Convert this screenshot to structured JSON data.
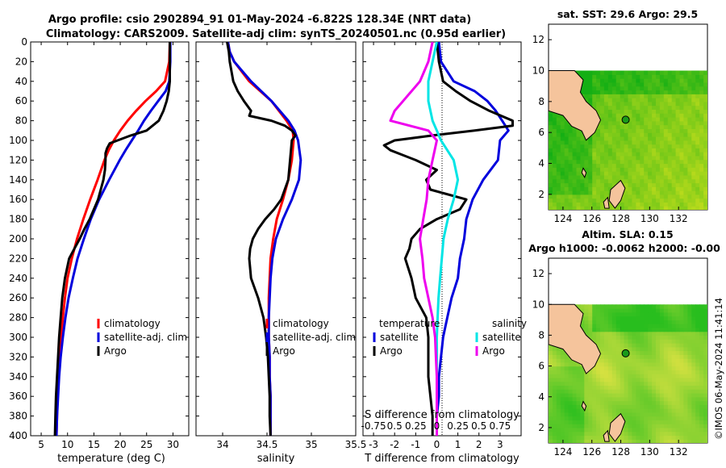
{
  "header": {
    "title_line1": "Argo profile: csio 2902894_91 01-May-2024 -6.822S 128.34E (NRT data)",
    "title_line2": "Climatology: CARS2009. Satellite-adj clim: synTS_20240501.nc (0.95d earlier)"
  },
  "colors": {
    "climatology": "#ff0000",
    "satellite": "#0000dd",
    "argo": "#000000",
    "sat_salinity": "#00e5e5",
    "argo_salinity": "#ee00ee",
    "land": "#f5c49c"
  },
  "chart_data": [
    {
      "type": "line",
      "id": "temperature",
      "xlabel": "temperature (deg C)",
      "ylabel": "",
      "xlim": [
        3,
        33
      ],
      "ylim": [
        0,
        400
      ],
      "y_reversed": true,
      "xticks": [
        5,
        10,
        15,
        20,
        25,
        30
      ],
      "yticks": [
        0,
        20,
        40,
        60,
        80,
        100,
        120,
        140,
        160,
        180,
        200,
        220,
        240,
        260,
        280,
        300,
        320,
        340,
        360,
        380,
        400
      ],
      "legend": [
        "climatology",
        "satellite-adj. clim",
        "Argo"
      ],
      "series": [
        {
          "name": "climatology",
          "color": "#ff0000",
          "depth": [
            0,
            20,
            40,
            50,
            60,
            70,
            80,
            90,
            100,
            110,
            120,
            140,
            160,
            180,
            200,
            220,
            240,
            260,
            280,
            300,
            320,
            340,
            360,
            380,
            400
          ],
          "values": [
            29.4,
            29.3,
            28.5,
            26.8,
            24.8,
            23.0,
            21.4,
            20.0,
            18.8,
            17.8,
            17.0,
            15.7,
            14.3,
            13.0,
            11.8,
            10.8,
            10.0,
            9.5,
            9.1,
            8.8,
            8.5,
            8.3,
            8.1,
            8.0,
            7.9
          ]
        },
        {
          "name": "satellite-adj. clim",
          "color": "#0000dd",
          "depth": [
            0,
            20,
            40,
            50,
            60,
            70,
            80,
            90,
            100,
            110,
            120,
            140,
            160,
            180,
            200,
            220,
            240,
            260,
            280,
            300,
            320,
            340,
            360,
            380,
            400
          ],
          "values": [
            29.5,
            29.5,
            29.3,
            28.6,
            27.2,
            25.8,
            24.5,
            23.4,
            22.2,
            21.0,
            19.9,
            17.9,
            16.0,
            14.4,
            13.1,
            11.9,
            11.0,
            10.2,
            9.6,
            9.1,
            8.7,
            8.4,
            8.2,
            8.0,
            7.9
          ]
        },
        {
          "name": "Argo",
          "color": "#000000",
          "depth": [
            0,
            20,
            40,
            50,
            60,
            70,
            80,
            90,
            95,
            100,
            103,
            108,
            113,
            120,
            130,
            140,
            150,
            160,
            170,
            180,
            190,
            200,
            210,
            220,
            240,
            260,
            280,
            300,
            320,
            340,
            360,
            380,
            400
          ],
          "values": [
            29.4,
            29.4,
            29.4,
            29.2,
            28.8,
            28.2,
            27.3,
            25.0,
            22.0,
            19.5,
            18.0,
            17.5,
            17.2,
            17.2,
            17.1,
            16.8,
            16.3,
            15.8,
            15.0,
            14.2,
            13.2,
            12.3,
            11.3,
            10.3,
            9.5,
            9.0,
            8.7,
            8.4,
            8.2,
            8.0,
            7.8,
            7.7,
            7.6
          ]
        }
      ]
    },
    {
      "type": "line",
      "id": "salinity",
      "xlabel": "salinity",
      "xlim": [
        33.7,
        35.5
      ],
      "ylim": [
        0,
        400
      ],
      "y_reversed": true,
      "xticks": [
        34,
        34.5,
        35,
        35.5
      ],
      "xtick_labels": [
        "34",
        "34.5",
        "35",
        "35.5"
      ],
      "legend": [
        "climatology",
        "satellite-adj. clim",
        "Argo"
      ],
      "series": [
        {
          "name": "climatology",
          "color": "#ff0000",
          "depth": [
            0,
            10,
            20,
            40,
            60,
            80,
            90,
            100,
            120,
            140,
            160,
            180,
            200,
            220,
            240,
            260,
            280,
            300,
            320,
            340,
            360,
            380,
            400
          ],
          "values": [
            34.06,
            34.08,
            34.13,
            34.3,
            34.55,
            34.72,
            34.79,
            34.8,
            34.78,
            34.74,
            34.68,
            34.61,
            34.57,
            34.54,
            34.53,
            34.52,
            34.52,
            34.52,
            34.53,
            34.53,
            34.54,
            34.54,
            34.54
          ]
        },
        {
          "name": "satellite-adj. clim",
          "color": "#0000dd",
          "depth": [
            0,
            10,
            20,
            40,
            60,
            80,
            90,
            100,
            120,
            140,
            160,
            180,
            200,
            220,
            240,
            260,
            280,
            300,
            320,
            340,
            360,
            380,
            400
          ],
          "values": [
            34.06,
            34.08,
            34.13,
            34.32,
            34.55,
            34.74,
            34.81,
            34.85,
            34.88,
            34.86,
            34.78,
            34.68,
            34.6,
            34.56,
            34.54,
            34.53,
            34.52,
            34.52,
            34.53,
            34.53,
            34.54,
            34.54,
            34.54
          ]
        },
        {
          "name": "Argo",
          "color": "#000000",
          "depth": [
            0,
            5,
            10,
            20,
            30,
            40,
            50,
            60,
            70,
            75,
            80,
            85,
            90,
            95,
            100,
            120,
            140,
            160,
            170,
            180,
            190,
            200,
            210,
            220,
            240,
            260,
            280,
            300,
            320,
            340,
            360,
            380,
            400
          ],
          "values": [
            34.05,
            34.06,
            34.07,
            34.08,
            34.1,
            34.12,
            34.17,
            34.24,
            34.32,
            34.3,
            34.55,
            34.7,
            34.78,
            34.82,
            34.78,
            34.76,
            34.74,
            34.66,
            34.58,
            34.48,
            34.4,
            34.34,
            34.31,
            34.3,
            34.32,
            34.4,
            34.46,
            34.49,
            34.51,
            34.52,
            34.53,
            34.53,
            34.54
          ]
        }
      ]
    },
    {
      "type": "line",
      "id": "difference",
      "xlabel": "T difference from climatology",
      "xlim": [
        -3.5,
        4
      ],
      "ylim": [
        0,
        400
      ],
      "y_reversed": true,
      "xticks": [
        -3,
        -2,
        -1,
        0,
        1,
        2,
        3
      ],
      "xtick_labels": [
        "-3",
        "-2",
        "-1",
        "0",
        "1",
        "2",
        "3"
      ],
      "secondary_xlabel": "S difference from climatology",
      "secondary_xtick_labels": [
        "-0.75",
        "0.5",
        "0.25",
        "0",
        "0.25",
        "0.5",
        "0.75"
      ],
      "legend_left_title": "temperature",
      "legend_right_title": "salinity",
      "legend_left": [
        "satellite",
        "Argo"
      ],
      "legend_right": [
        "satellite",
        "Argo"
      ],
      "series": [
        {
          "name": "temperature satellite",
          "color": "#0000dd",
          "depth": [
            0,
            20,
            40,
            50,
            60,
            70,
            80,
            90,
            100,
            120,
            140,
            160,
            180,
            200,
            220,
            240,
            260,
            280,
            300,
            320,
            340,
            360,
            380,
            400
          ],
          "values": [
            0.1,
            0.2,
            0.8,
            1.8,
            2.4,
            2.8,
            3.1,
            3.4,
            3.0,
            2.9,
            2.2,
            1.7,
            1.4,
            1.3,
            1.1,
            1.0,
            0.7,
            0.5,
            0.3,
            0.2,
            0.1,
            0.1,
            0.0,
            0.0
          ]
        },
        {
          "name": "temperature Argo",
          "color": "#000000",
          "depth": [
            0,
            20,
            40,
            50,
            60,
            70,
            80,
            85,
            90,
            95,
            100,
            105,
            110,
            120,
            130,
            140,
            150,
            160,
            170,
            180,
            190,
            200,
            210,
            220,
            240,
            260,
            280,
            300,
            320,
            340,
            360,
            380,
            400
          ],
          "values": [
            0.0,
            0.1,
            0.3,
            0.9,
            1.6,
            2.5,
            3.6,
            3.6,
            1.8,
            -0.2,
            -2.0,
            -2.5,
            -2.2,
            -1.0,
            0.0,
            -0.5,
            -0.3,
            1.4,
            1.1,
            0.0,
            -0.8,
            -1.2,
            -1.3,
            -1.5,
            -1.2,
            -1.0,
            -0.5,
            -0.4,
            -0.4,
            -0.4,
            -0.3,
            -0.2,
            -0.2
          ]
        }
      ],
      "series_salinity": [
        {
          "name": "salinity satellite",
          "color": "#00e5e5",
          "depth": [
            0,
            20,
            40,
            60,
            80,
            90,
            100,
            120,
            140,
            160,
            180,
            200,
            220,
            240,
            260,
            280,
            300,
            320,
            340,
            360,
            380,
            400
          ],
          "values": [
            0.0,
            -0.05,
            -0.1,
            -0.1,
            -0.05,
            0.0,
            0.05,
            0.2,
            0.25,
            0.2,
            0.13,
            0.08,
            0.06,
            0.04,
            0.02,
            0.01,
            0.0,
            0.0,
            0.0,
            0.0,
            0.0,
            0.0
          ]
        },
        {
          "name": "salinity Argo",
          "color": "#ee00ee",
          "depth": [
            0,
            20,
            40,
            60,
            70,
            80,
            90,
            100,
            120,
            140,
            160,
            170,
            180,
            200,
            220,
            240,
            260,
            280,
            300,
            320,
            340,
            360,
            380,
            400
          ],
          "values": [
            -0.05,
            -0.1,
            -0.2,
            -0.4,
            -0.5,
            -0.55,
            -0.1,
            0.0,
            -0.05,
            -0.1,
            -0.12,
            -0.14,
            -0.16,
            -0.2,
            -0.17,
            -0.15,
            -0.1,
            -0.05,
            -0.02,
            -0.01,
            0.0,
            0.0,
            0.0,
            0.0
          ]
        }
      ]
    },
    {
      "type": "heatmap",
      "id": "sst_map",
      "title": "sat. SST: 29.6 Argo: 29.5",
      "xlim": [
        123,
        134
      ],
      "ylim": [
        1,
        13
      ],
      "xticks": [
        124,
        126,
        128,
        130,
        132
      ],
      "yticks": [
        2,
        4,
        6,
        8,
        10,
        12
      ],
      "data_top": 10,
      "float_position": [
        128.34,
        6.82
      ]
    },
    {
      "type": "heatmap",
      "id": "sla_map",
      "title_line1": "Altim. SLA: 0.15",
      "title_line2": "Argo h1000: -0.0062 h2000: -0.00",
      "xlim": [
        123,
        134
      ],
      "ylim": [
        1,
        13
      ],
      "xticks": [
        124,
        126,
        128,
        130,
        132
      ],
      "yticks": [
        2,
        4,
        6,
        8,
        10,
        12
      ],
      "data_top": 10,
      "float_position": [
        128.34,
        6.82
      ]
    }
  ],
  "footer": {
    "stamp": "©IMOS 06-May-2024 11:41:14"
  }
}
